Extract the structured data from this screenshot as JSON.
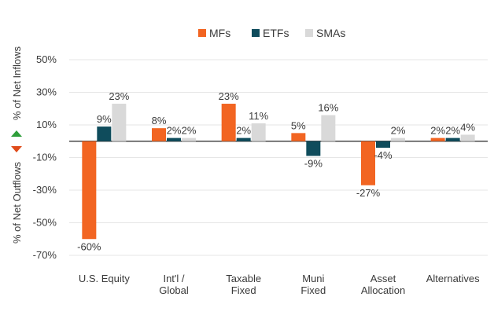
{
  "chart_data": {
    "type": "bar",
    "categories": [
      [
        "U.S. Equity"
      ],
      [
        "Int'l /",
        "Global"
      ],
      [
        "Taxable",
        "Fixed"
      ],
      [
        "Muni",
        "Fixed"
      ],
      [
        "Asset",
        "Allocation"
      ],
      [
        "Alternatives"
      ]
    ],
    "series": [
      {
        "name": "MFs",
        "color": "#f26522",
        "values": [
          -60,
          8,
          23,
          5,
          -27,
          2
        ]
      },
      {
        "name": "ETFs",
        "color": "#0f4c5c",
        "values": [
          9,
          2,
          2,
          -9,
          -4,
          2
        ]
      },
      {
        "name": "SMAs",
        "color": "#d9d9d9",
        "values": [
          23,
          2,
          11,
          16,
          2,
          4
        ]
      }
    ],
    "ylim": [
      -70,
      50
    ],
    "yticks": [
      50,
      30,
      10,
      -10,
      -30,
      -50,
      -70
    ],
    "ylabel_top": "% of Net Inflows",
    "ylabel_bottom": "% of Net Outflows",
    "grid": true,
    "legend": "top-center",
    "up_arrow_color": "#2e9e3a",
    "down_arrow_color": "#e04b1a"
  }
}
